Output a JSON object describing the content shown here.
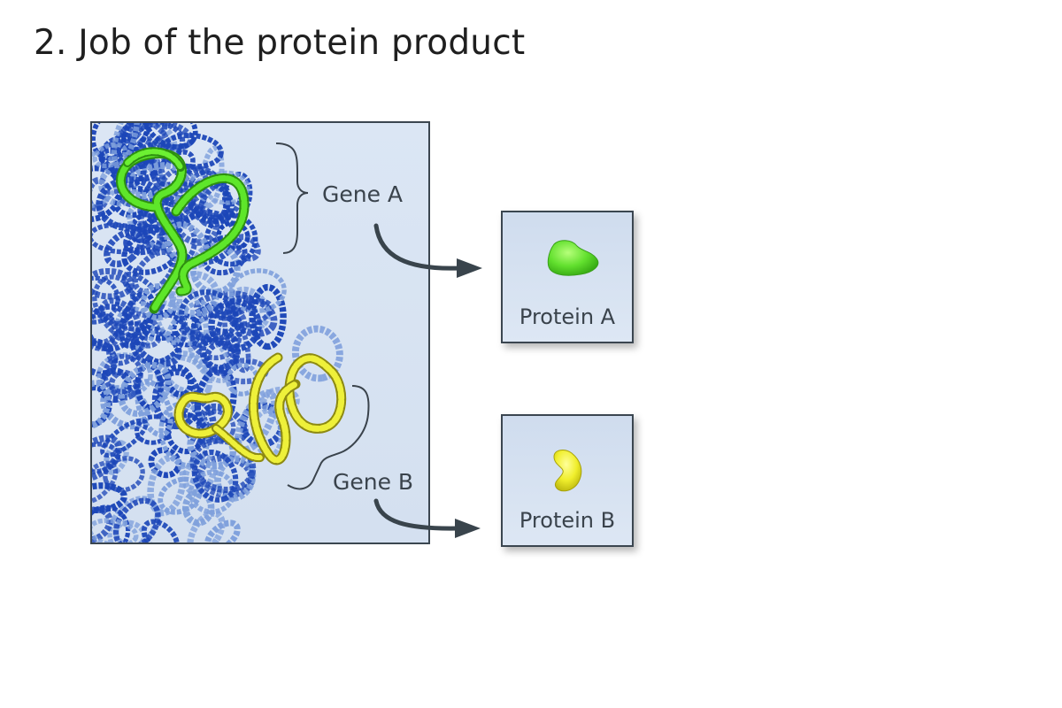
{
  "title": "2. Job of the protein product",
  "genes": [
    {
      "label": "Gene A",
      "color": "#5ee62a"
    },
    {
      "label": "Gene B",
      "color": "#eef03a"
    }
  ],
  "proteins": [
    {
      "label": "Protein A",
      "color": "#62e02e"
    },
    {
      "label": "Protein B",
      "color": "#f0ee2c"
    }
  ],
  "colors": {
    "chromatin_dark": "#1c46b8",
    "chromatin_light": "#7fa0dc",
    "panel_background": "#d8e3f2",
    "arrow": "#39444c"
  }
}
